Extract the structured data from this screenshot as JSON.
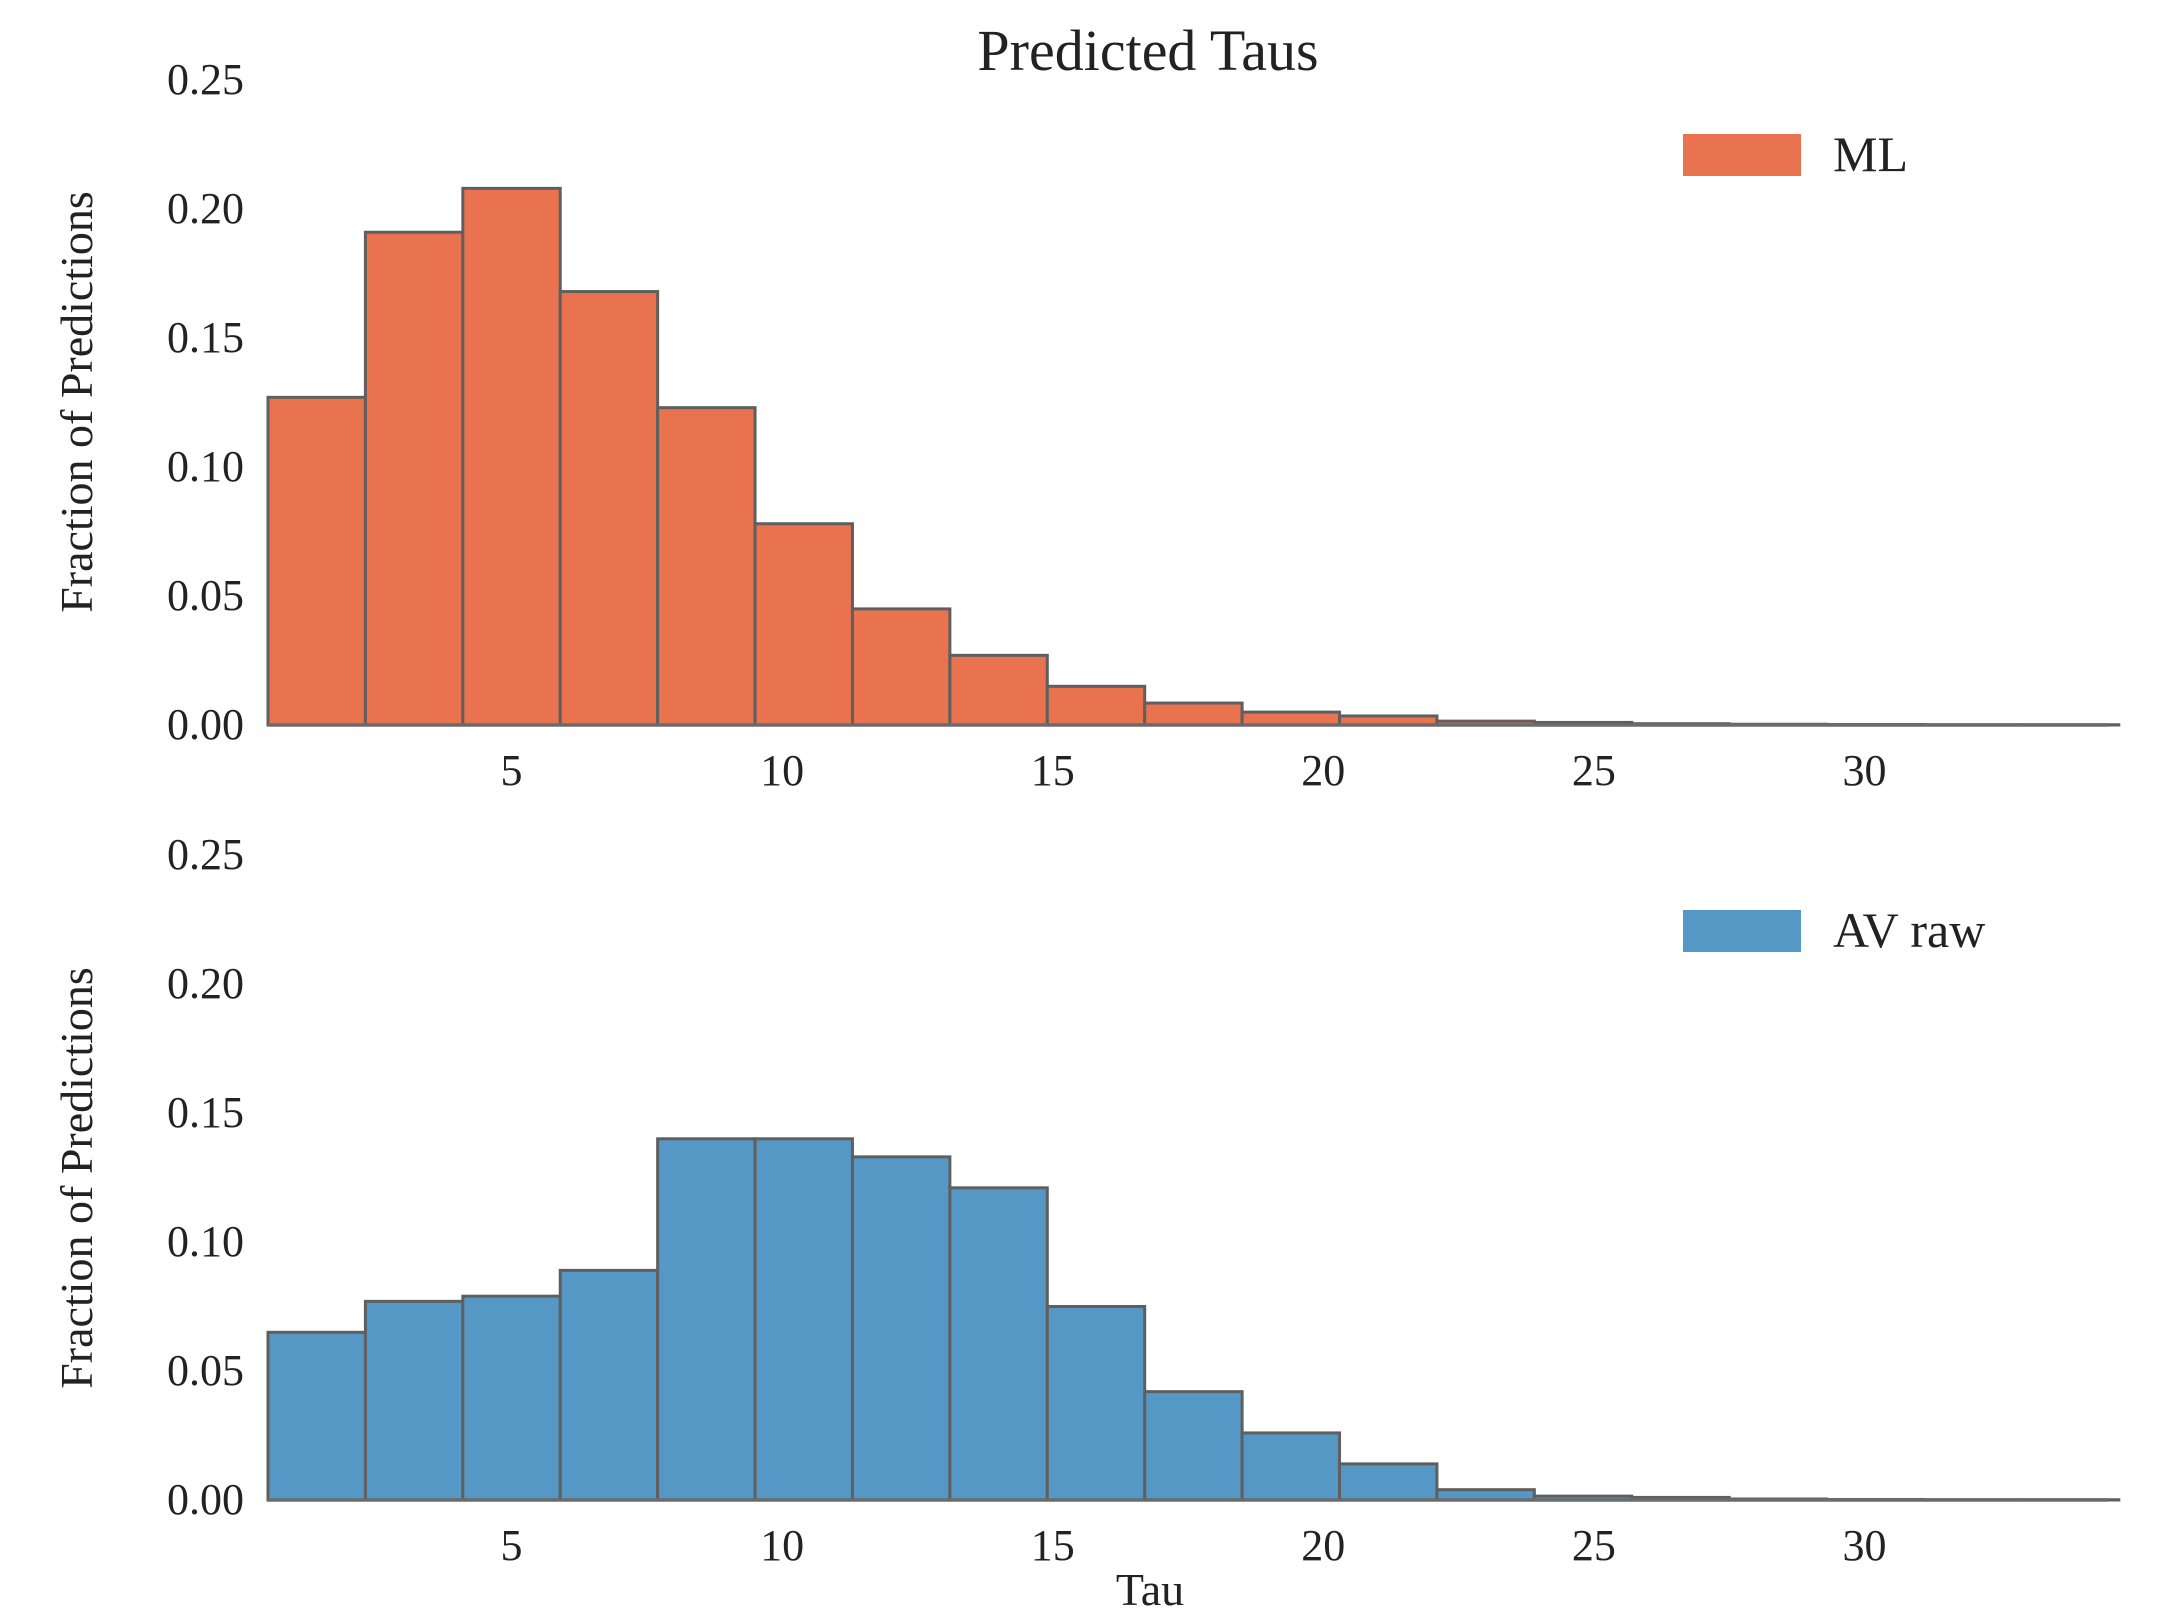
{
  "chart_data": [
    {
      "type": "bar",
      "title": "Predicted Taus",
      "xlabel": "",
      "ylabel": "Fraction of Predictions",
      "legend": {
        "label": "ML",
        "color": "#e8734e",
        "placement": "top-right"
      },
      "xlim": [
        0.5,
        34.5
      ],
      "ylim": [
        0,
        0.25
      ],
      "xticks": [
        "5",
        "10",
        "15",
        "20",
        "25",
        "30"
      ],
      "yticks": [
        "0.00",
        "0.05",
        "0.10",
        "0.15",
        "0.20",
        "0.25"
      ],
      "bin_edges": [
        0.5,
        2.3,
        4.1,
        5.9,
        7.7,
        9.5,
        11.3,
        13.1,
        14.9,
        16.7,
        18.5,
        20.3,
        22.1,
        23.9,
        25.7,
        27.5,
        29.3,
        31.1,
        32.9,
        34.7
      ],
      "values": [
        0.127,
        0.191,
        0.208,
        0.168,
        0.123,
        0.078,
        0.045,
        0.027,
        0.015,
        0.0085,
        0.005,
        0.0035,
        0.0015,
        0.001,
        0.0005,
        0.0003,
        0.0002,
        0.0001,
        0.0001
      ],
      "bar_color": "#e8734e"
    },
    {
      "type": "bar",
      "title": "",
      "xlabel": "Tau",
      "ylabel": "Fraction of Predictions",
      "legend": {
        "label": "AV raw",
        "color": "#5598c6",
        "placement": "top-right"
      },
      "xlim": [
        0.5,
        34.5
      ],
      "ylim": [
        0,
        0.25
      ],
      "xticks": [
        "5",
        "10",
        "15",
        "20",
        "25",
        "30"
      ],
      "yticks": [
        "0.00",
        "0.05",
        "0.10",
        "0.15",
        "0.20",
        "0.25"
      ],
      "bin_edges": [
        0.5,
        2.3,
        4.1,
        5.9,
        7.7,
        9.5,
        11.3,
        13.1,
        14.9,
        16.7,
        18.5,
        20.3,
        22.1,
        23.9,
        25.7,
        27.5,
        29.3,
        31.1,
        32.9,
        34.7
      ],
      "values": [
        0.065,
        0.077,
        0.079,
        0.089,
        0.14,
        0.14,
        0.133,
        0.121,
        0.075,
        0.042,
        0.026,
        0.014,
        0.004,
        0.0015,
        0.001,
        0.0004,
        0.0002,
        0.0001,
        0.0001
      ],
      "bar_color": "#5598c6"
    }
  ]
}
